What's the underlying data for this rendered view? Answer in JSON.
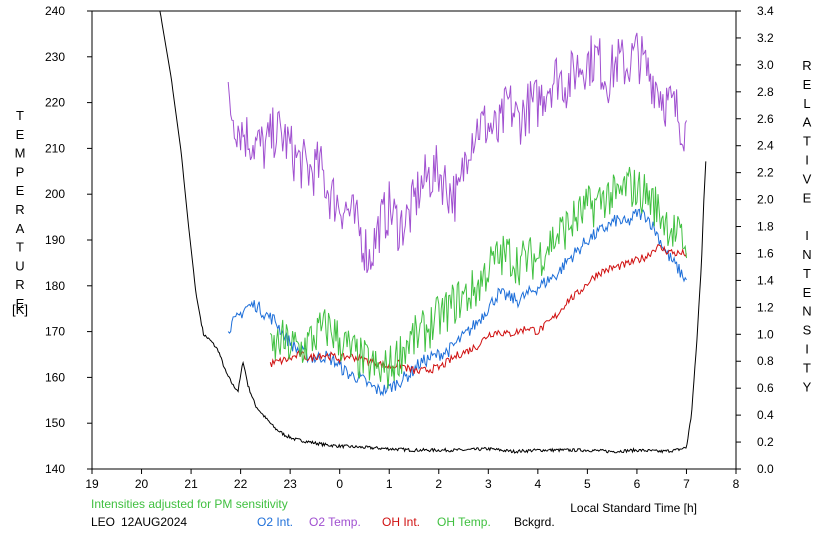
{
  "chart_data": {
    "type": "line",
    "station": "LEO",
    "date": "12AUG2024",
    "note": "Intensities adjusted for PM sensitivity",
    "xlabel": "Local Standard Time [h]",
    "ylabel_left": "TEMPERATURE",
    "ylabel_left_unit": "[K]",
    "ylabel_right": "RELATIVE INTENSITY",
    "x_ticks": [
      "19",
      "20",
      "21",
      "22",
      "23",
      "0",
      "1",
      "2",
      "3",
      "4",
      "5",
      "6",
      "7",
      "8"
    ],
    "y_left_ticks": [
      "140",
      "150",
      "160",
      "170",
      "180",
      "190",
      "200",
      "210",
      "220",
      "230",
      "240"
    ],
    "y_right_ticks": [
      "0.0",
      "0.2",
      "0.4",
      "0.6",
      "0.8",
      "1.0",
      "1.2",
      "1.4",
      "1.6",
      "1.8",
      "2.0",
      "2.2",
      "2.4",
      "2.6",
      "2.8",
      "3.0",
      "3.2",
      "3.4"
    ],
    "xlim": [
      19,
      32
    ],
    "ylim_left": [
      140,
      240
    ],
    "ylim_right": [
      0,
      3.4
    ],
    "grid": false,
    "legend": [
      {
        "label": "O2 Int.",
        "color": "#1e6fd9"
      },
      {
        "label": "O2 Temp.",
        "color": "#a050d0"
      },
      {
        "label": "OH Int.",
        "color": "#d01010"
      },
      {
        "label": "OH Temp.",
        "color": "#40c040"
      },
      {
        "label": "Bckgrd.",
        "color": "#000000"
      }
    ],
    "series": [
      {
        "name": "Bckgrd.",
        "axis": "right",
        "color": "#000000",
        "x": [
          20.35,
          20.6,
          20.8,
          20.95,
          21.1,
          21.25,
          21.4,
          21.55,
          21.7,
          21.85,
          21.95,
          22.05,
          22.15,
          22.3,
          22.5,
          22.7,
          22.9,
          23.1,
          23.4,
          23.7,
          24.0,
          24.5,
          25.0,
          25.5,
          26.0,
          26.5,
          27.0,
          27.5,
          28.0,
          28.5,
          29.0,
          29.5,
          30.0,
          30.5,
          30.8,
          31.0,
          31.1,
          31.2,
          31.3,
          31.35,
          31.4
        ],
        "y": [
          3.45,
          2.9,
          2.35,
          1.8,
          1.3,
          1.0,
          0.95,
          0.88,
          0.72,
          0.62,
          0.58,
          0.8,
          0.62,
          0.47,
          0.38,
          0.3,
          0.25,
          0.22,
          0.2,
          0.18,
          0.17,
          0.16,
          0.15,
          0.14,
          0.14,
          0.14,
          0.15,
          0.13,
          0.14,
          0.14,
          0.14,
          0.13,
          0.14,
          0.13,
          0.14,
          0.16,
          0.4,
          0.9,
          1.5,
          2.0,
          2.35
        ]
      },
      {
        "name": "O2 Temp.",
        "axis": "left",
        "color": "#a050d0",
        "x": [
          21.75,
          21.9,
          22.1,
          22.3,
          22.5,
          22.7,
          22.9,
          23.1,
          23.4,
          23.6,
          23.8,
          24.0,
          24.2,
          24.4,
          24.6,
          24.8,
          25.0,
          25.2,
          25.4,
          25.6,
          25.8,
          26.0,
          26.2,
          26.4,
          26.6,
          26.8,
          27.0,
          27.2,
          27.4,
          27.6,
          27.8,
          28.0,
          28.2,
          28.4,
          28.6,
          28.8,
          29.0,
          29.2,
          29.4,
          29.6,
          29.8,
          30.0,
          30.2,
          30.4,
          30.6,
          30.8,
          31.0
        ],
        "y": [
          220,
          216,
          213,
          211,
          210,
          214,
          212,
          208,
          205,
          206,
          200,
          198,
          196,
          192,
          186,
          193,
          197,
          193,
          195,
          201,
          204,
          205,
          201,
          199,
          212,
          215,
          215,
          213,
          220,
          216,
          219,
          220,
          224,
          226,
          224,
          228,
          229,
          230,
          225,
          229,
          228,
          231,
          227,
          224,
          220,
          218,
          214
        ]
      },
      {
        "name": "O2 Int.",
        "axis": "right",
        "color": "#1e6fd9",
        "x": [
          21.75,
          21.9,
          22.1,
          22.3,
          22.5,
          22.7,
          22.9,
          23.1,
          23.3,
          23.5,
          23.7,
          23.9,
          24.0,
          24.2,
          24.4,
          24.6,
          24.8,
          25.0,
          25.2,
          25.4,
          25.6,
          25.8,
          26.0,
          26.2,
          26.4,
          26.6,
          26.8,
          27.0,
          27.2,
          27.4,
          27.6,
          27.8,
          28.0,
          28.2,
          28.4,
          28.6,
          28.8,
          29.0,
          29.2,
          29.4,
          29.6,
          29.8,
          30.0,
          30.2,
          30.4,
          30.6,
          30.8,
          31.0
        ],
        "y": [
          1.05,
          1.1,
          1.2,
          1.22,
          1.15,
          1.1,
          0.98,
          0.9,
          0.85,
          0.82,
          0.84,
          0.8,
          0.76,
          0.7,
          0.68,
          0.62,
          0.58,
          0.6,
          0.65,
          0.7,
          0.78,
          0.82,
          0.85,
          0.88,
          0.95,
          1.02,
          1.1,
          1.2,
          1.3,
          1.28,
          1.25,
          1.3,
          1.35,
          1.4,
          1.45,
          1.55,
          1.62,
          1.7,
          1.75,
          1.8,
          1.85,
          1.82,
          1.9,
          1.88,
          1.75,
          1.6,
          1.5,
          1.4
        ]
      },
      {
        "name": "OH Int.",
        "axis": "right",
        "color": "#d01010",
        "x": [
          22.6,
          22.8,
          23.0,
          23.2,
          23.4,
          23.6,
          23.8,
          24.0,
          24.2,
          24.4,
          24.6,
          24.8,
          25.0,
          25.2,
          25.4,
          25.6,
          25.8,
          26.0,
          26.2,
          26.4,
          26.6,
          26.8,
          27.0,
          27.2,
          27.4,
          27.6,
          27.8,
          28.0,
          28.2,
          28.4,
          28.6,
          28.8,
          29.0,
          29.2,
          29.4,
          29.6,
          29.8,
          30.0,
          30.2,
          30.4,
          30.6,
          30.8,
          31.0
        ],
        "y": [
          0.78,
          0.8,
          0.82,
          0.85,
          0.82,
          0.85,
          0.84,
          0.82,
          0.84,
          0.82,
          0.8,
          0.78,
          0.76,
          0.78,
          0.74,
          0.72,
          0.74,
          0.75,
          0.8,
          0.85,
          0.88,
          0.92,
          1.0,
          1.02,
          1.0,
          1.02,
          1.05,
          1.02,
          1.08,
          1.15,
          1.25,
          1.3,
          1.38,
          1.45,
          1.48,
          1.5,
          1.52,
          1.55,
          1.58,
          1.65,
          1.62,
          1.6,
          1.6
        ]
      },
      {
        "name": "OH Temp.",
        "axis": "left",
        "color": "#40c040",
        "x": [
          22.6,
          22.8,
          23.0,
          23.2,
          23.4,
          23.6,
          23.8,
          24.0,
          24.2,
          24.4,
          24.6,
          24.8,
          25.0,
          25.2,
          25.4,
          25.6,
          25.8,
          26.0,
          26.2,
          26.4,
          26.6,
          26.8,
          27.0,
          27.2,
          27.4,
          27.6,
          27.8,
          28.0,
          28.2,
          28.4,
          28.6,
          28.8,
          29.0,
          29.2,
          29.4,
          29.6,
          29.8,
          30.0,
          30.2,
          30.4,
          30.6,
          30.8,
          31.0
        ],
        "y": [
          165,
          168,
          167,
          166,
          168,
          170,
          171,
          168,
          166,
          164,
          163,
          161,
          162,
          165,
          168,
          169,
          171,
          173,
          175,
          177,
          178,
          180,
          184,
          186,
          187,
          185,
          186,
          186,
          189,
          191,
          193,
          195,
          197,
          198,
          200,
          199,
          202,
          201,
          200,
          197,
          194,
          191,
          189
        ]
      }
    ]
  }
}
